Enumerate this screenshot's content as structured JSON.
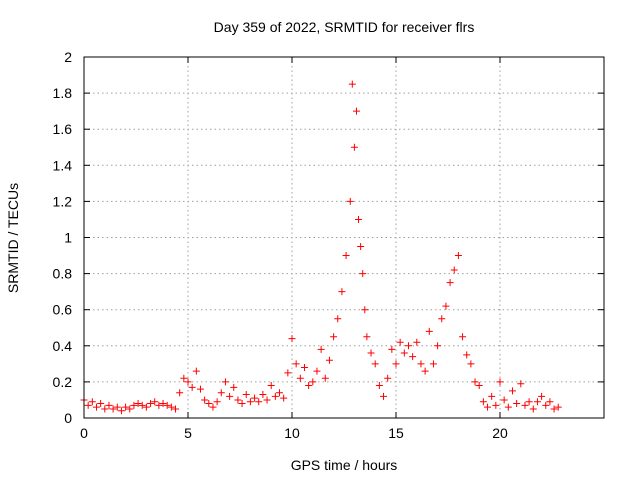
{
  "chart_data": {
    "type": "scatter",
    "title": "Day 359 of 2022, SRMTID for receiver flrs",
    "xlabel": "GPS time / hours",
    "ylabel": "SRMTID / TECUs",
    "xlim": [
      0,
      25
    ],
    "ylim": [
      0,
      2
    ],
    "xticks": [
      0,
      5,
      10,
      15,
      20
    ],
    "xtick_labels": [
      "0",
      "5",
      "10",
      "15",
      "20"
    ],
    "yticks": [
      0,
      0.2,
      0.4,
      0.6,
      0.8,
      1,
      1.2,
      1.4,
      1.6,
      1.8,
      2
    ],
    "ytick_labels": [
      "0",
      "0.2",
      "0.4",
      "0.6",
      "0.8",
      "1",
      "1.2",
      "1.4",
      "1.6",
      "1.8",
      "2"
    ],
    "grid": true,
    "marker": "+",
    "color": "#ff0000",
    "series": [
      {
        "name": "SRMTID",
        "points": [
          [
            0.0,
            0.1
          ],
          [
            0.2,
            0.07
          ],
          [
            0.4,
            0.09
          ],
          [
            0.6,
            0.06
          ],
          [
            0.8,
            0.08
          ],
          [
            1.0,
            0.05
          ],
          [
            1.2,
            0.07
          ],
          [
            1.4,
            0.05
          ],
          [
            1.6,
            0.06
          ],
          [
            1.8,
            0.04
          ],
          [
            2.0,
            0.06
          ],
          [
            2.2,
            0.05
          ],
          [
            2.4,
            0.07
          ],
          [
            2.6,
            0.08
          ],
          [
            2.8,
            0.07
          ],
          [
            3.0,
            0.06
          ],
          [
            3.2,
            0.08
          ],
          [
            3.4,
            0.09
          ],
          [
            3.6,
            0.07
          ],
          [
            3.8,
            0.08
          ],
          [
            4.0,
            0.07
          ],
          [
            4.2,
            0.06
          ],
          [
            4.4,
            0.05
          ],
          [
            4.6,
            0.14
          ],
          [
            4.8,
            0.22
          ],
          [
            5.0,
            0.2
          ],
          [
            5.2,
            0.17
          ],
          [
            5.4,
            0.26
          ],
          [
            5.6,
            0.16
          ],
          [
            5.8,
            0.1
          ],
          [
            6.0,
            0.08
          ],
          [
            6.2,
            0.06
          ],
          [
            6.4,
            0.09
          ],
          [
            6.6,
            0.14
          ],
          [
            6.8,
            0.2
          ],
          [
            7.0,
            0.12
          ],
          [
            7.2,
            0.17
          ],
          [
            7.4,
            0.1
          ],
          [
            7.6,
            0.08
          ],
          [
            7.8,
            0.13
          ],
          [
            8.0,
            0.09
          ],
          [
            8.2,
            0.11
          ],
          [
            8.4,
            0.09
          ],
          [
            8.6,
            0.13
          ],
          [
            8.8,
            0.1
          ],
          [
            9.0,
            0.18
          ],
          [
            9.2,
            0.12
          ],
          [
            9.4,
            0.14
          ],
          [
            9.6,
            0.11
          ],
          [
            9.8,
            0.25
          ],
          [
            10.0,
            0.44
          ],
          [
            10.2,
            0.3
          ],
          [
            10.4,
            0.22
          ],
          [
            10.6,
            0.28
          ],
          [
            10.8,
            0.18
          ],
          [
            11.0,
            0.2
          ],
          [
            11.2,
            0.26
          ],
          [
            11.4,
            0.38
          ],
          [
            11.6,
            0.22
          ],
          [
            11.8,
            0.32
          ],
          [
            12.0,
            0.45
          ],
          [
            12.2,
            0.55
          ],
          [
            12.4,
            0.7
          ],
          [
            12.6,
            0.9
          ],
          [
            12.8,
            1.2
          ],
          [
            12.9,
            1.85
          ],
          [
            13.0,
            1.5
          ],
          [
            13.1,
            1.7
          ],
          [
            13.2,
            1.1
          ],
          [
            13.3,
            0.95
          ],
          [
            13.4,
            0.8
          ],
          [
            13.5,
            0.6
          ],
          [
            13.6,
            0.45
          ],
          [
            13.8,
            0.36
          ],
          [
            14.0,
            0.3
          ],
          [
            14.2,
            0.18
          ],
          [
            14.4,
            0.12
          ],
          [
            14.6,
            0.22
          ],
          [
            14.8,
            0.38
          ],
          [
            15.0,
            0.3
          ],
          [
            15.2,
            0.42
          ],
          [
            15.4,
            0.36
          ],
          [
            15.6,
            0.4
          ],
          [
            15.8,
            0.34
          ],
          [
            16.0,
            0.42
          ],
          [
            16.2,
            0.3
          ],
          [
            16.4,
            0.26
          ],
          [
            16.6,
            0.48
          ],
          [
            16.8,
            0.3
          ],
          [
            17.0,
            0.4
          ],
          [
            17.2,
            0.55
          ],
          [
            17.4,
            0.62
          ],
          [
            17.6,
            0.75
          ],
          [
            17.8,
            0.82
          ],
          [
            18.0,
            0.9
          ],
          [
            18.2,
            0.45
          ],
          [
            18.4,
            0.35
          ],
          [
            18.6,
            0.3
          ],
          [
            18.8,
            0.2
          ],
          [
            19.0,
            0.18
          ],
          [
            19.2,
            0.09
          ],
          [
            19.4,
            0.06
          ],
          [
            19.6,
            0.12
          ],
          [
            19.8,
            0.07
          ],
          [
            20.0,
            0.2
          ],
          [
            20.2,
            0.1
          ],
          [
            20.4,
            0.06
          ],
          [
            20.6,
            0.15
          ],
          [
            20.8,
            0.08
          ],
          [
            21.0,
            0.19
          ],
          [
            21.2,
            0.07
          ],
          [
            21.4,
            0.09
          ],
          [
            21.6,
            0.05
          ],
          [
            21.8,
            0.09
          ],
          [
            22.0,
            0.12
          ],
          [
            22.2,
            0.07
          ],
          [
            22.4,
            0.09
          ],
          [
            22.6,
            0.05
          ],
          [
            22.8,
            0.06
          ]
        ]
      }
    ]
  }
}
